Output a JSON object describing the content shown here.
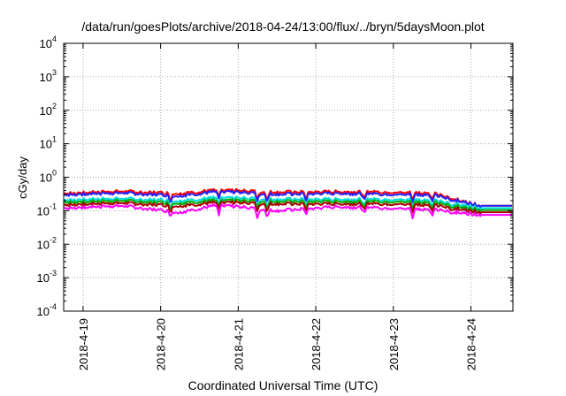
{
  "chart_data": {
    "type": "line",
    "title": "/data/run/goesPlots/archive/2018-04-24/13:00/flux/../bryn/5daysMoon.plot",
    "xlabel": "Coordinated Universal Time (UTC)",
    "ylabel": "cGy/day",
    "yscale": "log",
    "ylim": [
      0.0001,
      10000
    ],
    "y_ticks": [
      {
        "base": "10",
        "exp": "-4",
        "value": 0.0001
      },
      {
        "base": "10",
        "exp": "-3",
        "value": 0.001
      },
      {
        "base": "10",
        "exp": "-2",
        "value": 0.01
      },
      {
        "base": "10",
        "exp": "-1",
        "value": 0.1
      },
      {
        "base": "10",
        "exp": "0",
        "value": 1
      },
      {
        "base": "10",
        "exp": "1",
        "value": 10
      },
      {
        "base": "10",
        "exp": "2",
        "value": 100
      },
      {
        "base": "10",
        "exp": "3",
        "value": 1000
      },
      {
        "base": "10",
        "exp": "4",
        "value": 10000
      }
    ],
    "xlim": [
      "2018-04-18T18:00",
      "2018-04-24T13:00"
    ],
    "x_ticks": [
      "2018-4-19",
      "2018-4-20",
      "2018-4-21",
      "2018-4-22",
      "2018-4-23",
      "2018-4-24"
    ],
    "grid": true,
    "legend": "none",
    "step_time": "2018-04-24T03:00",
    "series": [
      {
        "color": "#ff0000",
        "base": 0.36,
        "tail": 0.14,
        "x": [
          "2018-04-18T18:00",
          "2018-04-19T12:00",
          "2018-04-20T06:00",
          "2018-04-20T18:00",
          "2018-04-21T12:00",
          "2018-04-22T06:00",
          "2018-04-23T00:00",
          "2018-04-23T12:00",
          "2018-04-24T03:00",
          "2018-04-24T13:00"
        ],
        "y": [
          0.33,
          0.38,
          0.33,
          0.42,
          0.36,
          0.37,
          0.36,
          0.34,
          0.14,
          0.14
        ]
      },
      {
        "color": "#2222ff",
        "base": 0.31,
        "tail": 0.14,
        "x": [
          "2018-04-18T18:00",
          "2018-04-19T12:00",
          "2018-04-20T06:00",
          "2018-04-20T18:00",
          "2018-04-21T12:00",
          "2018-04-22T06:00",
          "2018-04-23T00:00",
          "2018-04-23T12:00",
          "2018-04-24T03:00",
          "2018-04-24T13:00"
        ],
        "y": [
          0.3,
          0.34,
          0.28,
          0.38,
          0.31,
          0.33,
          0.31,
          0.3,
          0.14,
          0.14
        ]
      },
      {
        "color": "#00dddd",
        "base": 0.22,
        "tail": 0.12,
        "x": [
          "2018-04-18T18:00",
          "2018-04-19T12:00",
          "2018-04-20T06:00",
          "2018-04-20T18:00",
          "2018-04-21T12:00",
          "2018-04-22T06:00",
          "2018-04-23T00:00",
          "2018-04-23T12:00",
          "2018-04-24T03:00",
          "2018-04-24T13:00"
        ],
        "y": [
          0.21,
          0.23,
          0.2,
          0.25,
          0.22,
          0.22,
          0.22,
          0.21,
          0.12,
          0.12
        ]
      },
      {
        "color": "#00aa00",
        "base": 0.19,
        "tail": 0.105,
        "x": [
          "2018-04-18T18:00",
          "2018-04-19T12:00",
          "2018-04-20T06:00",
          "2018-04-20T18:00",
          "2018-04-21T12:00",
          "2018-04-22T06:00",
          "2018-04-23T00:00",
          "2018-04-23T12:00",
          "2018-04-24T03:00",
          "2018-04-24T13:00"
        ],
        "y": [
          0.18,
          0.2,
          0.17,
          0.21,
          0.19,
          0.19,
          0.19,
          0.18,
          0.105,
          0.105
        ]
      },
      {
        "color": "#aa0000",
        "base": 0.16,
        "tail": 0.09,
        "x": [
          "2018-04-18T18:00",
          "2018-04-19T12:00",
          "2018-04-20T06:00",
          "2018-04-20T18:00",
          "2018-04-21T12:00",
          "2018-04-22T06:00",
          "2018-04-23T00:00",
          "2018-04-23T12:00",
          "2018-04-24T03:00",
          "2018-04-24T13:00"
        ],
        "y": [
          0.15,
          0.17,
          0.14,
          0.18,
          0.16,
          0.16,
          0.16,
          0.15,
          0.09,
          0.09
        ]
      },
      {
        "color": "#ff00ff",
        "base": 0.13,
        "tail": 0.075,
        "x": [
          "2018-04-18T18:00",
          "2018-04-19T12:00",
          "2018-04-20T06:00",
          "2018-04-20T18:00",
          "2018-04-21T12:00",
          "2018-04-22T06:00",
          "2018-04-23T00:00",
          "2018-04-23T12:00",
          "2018-04-24T03:00",
          "2018-04-24T13:00"
        ],
        "y": [
          0.12,
          0.14,
          0.09,
          0.15,
          0.1,
          0.13,
          0.12,
          0.11,
          0.075,
          0.075
        ]
      }
    ],
    "dips": [
      {
        "x": "2018-04-20T03:00",
        "y": 0.065
      },
      {
        "x": "2018-04-20T18:00",
        "y": 0.07
      },
      {
        "x": "2018-04-21T06:00",
        "y": 0.055
      },
      {
        "x": "2018-04-21T09:00",
        "y": 0.06
      },
      {
        "x": "2018-04-21T21:00",
        "y": 0.075
      },
      {
        "x": "2018-04-22T15:00",
        "y": 0.08
      },
      {
        "x": "2018-04-23T06:00",
        "y": 0.055
      },
      {
        "x": "2018-04-23T12:00",
        "y": 0.065
      },
      {
        "x": "2018-04-23T18:00",
        "y": 0.08
      }
    ]
  }
}
